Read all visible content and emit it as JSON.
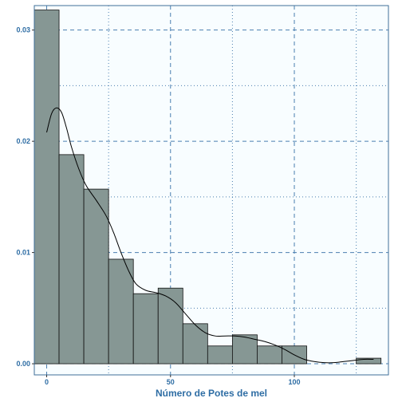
{
  "chart_data": {
    "type": "bar",
    "subtype": "histogram-with-density",
    "title": "",
    "xlabel": "Número de Potes de mel",
    "ylabel": "",
    "xlim": [
      -5,
      138
    ],
    "ylim": [
      -0.001,
      0.0322
    ],
    "x_ticks": [
      0,
      50,
      100
    ],
    "y_ticks": [
      0.0,
      0.01,
      0.02,
      0.03
    ],
    "x_tick_labels": [
      "0",
      "50",
      "100"
    ],
    "y_tick_labels": [
      "0.00",
      "0.01",
      "0.02",
      "0.03"
    ],
    "grid": true,
    "bin_width": 10,
    "bins": [
      {
        "x0": -5,
        "x1": 5,
        "density": 0.0318
      },
      {
        "x0": 5,
        "x1": 15,
        "density": 0.0188
      },
      {
        "x0": 15,
        "x1": 25,
        "density": 0.0157
      },
      {
        "x0": 25,
        "x1": 35,
        "density": 0.0094
      },
      {
        "x0": 35,
        "x1": 45,
        "density": 0.0063
      },
      {
        "x0": 45,
        "x1": 55,
        "density": 0.0068
      },
      {
        "x0": 55,
        "x1": 65,
        "density": 0.0036
      },
      {
        "x0": 65,
        "x1": 75,
        "density": 0.0016
      },
      {
        "x0": 75,
        "x1": 85,
        "density": 0.0026
      },
      {
        "x0": 85,
        "x1": 95,
        "density": 0.0016
      },
      {
        "x0": 95,
        "x1": 105,
        "density": 0.0016
      },
      {
        "x0": 105,
        "x1": 115,
        "density": 0.0
      },
      {
        "x0": 115,
        "x1": 125,
        "density": 0.0
      },
      {
        "x0": 125,
        "x1": 135,
        "density": 0.0005
      }
    ],
    "density_curve": [
      [
        0,
        0.0208
      ],
      [
        2,
        0.0225
      ],
      [
        4,
        0.023
      ],
      [
        6,
        0.0226
      ],
      [
        8,
        0.0212
      ],
      [
        10,
        0.0195
      ],
      [
        13,
        0.0175
      ],
      [
        16,
        0.016
      ],
      [
        20,
        0.0147
      ],
      [
        24,
        0.0133
      ],
      [
        27,
        0.0118
      ],
      [
        30,
        0.01
      ],
      [
        33,
        0.0084
      ],
      [
        36,
        0.0072
      ],
      [
        40,
        0.0066
      ],
      [
        44,
        0.0064
      ],
      [
        48,
        0.0061
      ],
      [
        52,
        0.0055
      ],
      [
        56,
        0.0045
      ],
      [
        60,
        0.0035
      ],
      [
        64,
        0.0028
      ],
      [
        68,
        0.0025
      ],
      [
        72,
        0.0025
      ],
      [
        76,
        0.0025
      ],
      [
        80,
        0.0024
      ],
      [
        84,
        0.0022
      ],
      [
        88,
        0.002
      ],
      [
        92,
        0.0017
      ],
      [
        96,
        0.0013
      ],
      [
        100,
        0.0008
      ],
      [
        104,
        0.0004
      ],
      [
        108,
        0.0002
      ],
      [
        112,
        0.0001
      ],
      [
        116,
        0.0001
      ],
      [
        120,
        0.0002
      ],
      [
        124,
        0.0003
      ],
      [
        128,
        0.0004
      ],
      [
        132,
        0.0004
      ]
    ],
    "colors": {
      "bar_fill": "#869794",
      "bar_stroke": "#111111",
      "panel_bg": "#f8fdff",
      "panel_border": "#3f6f9a",
      "major_grid": "#4a7fb0",
      "minor_grid": "#4a7fb0",
      "tick_text": "#2e6da4",
      "curve": "#000000"
    }
  }
}
